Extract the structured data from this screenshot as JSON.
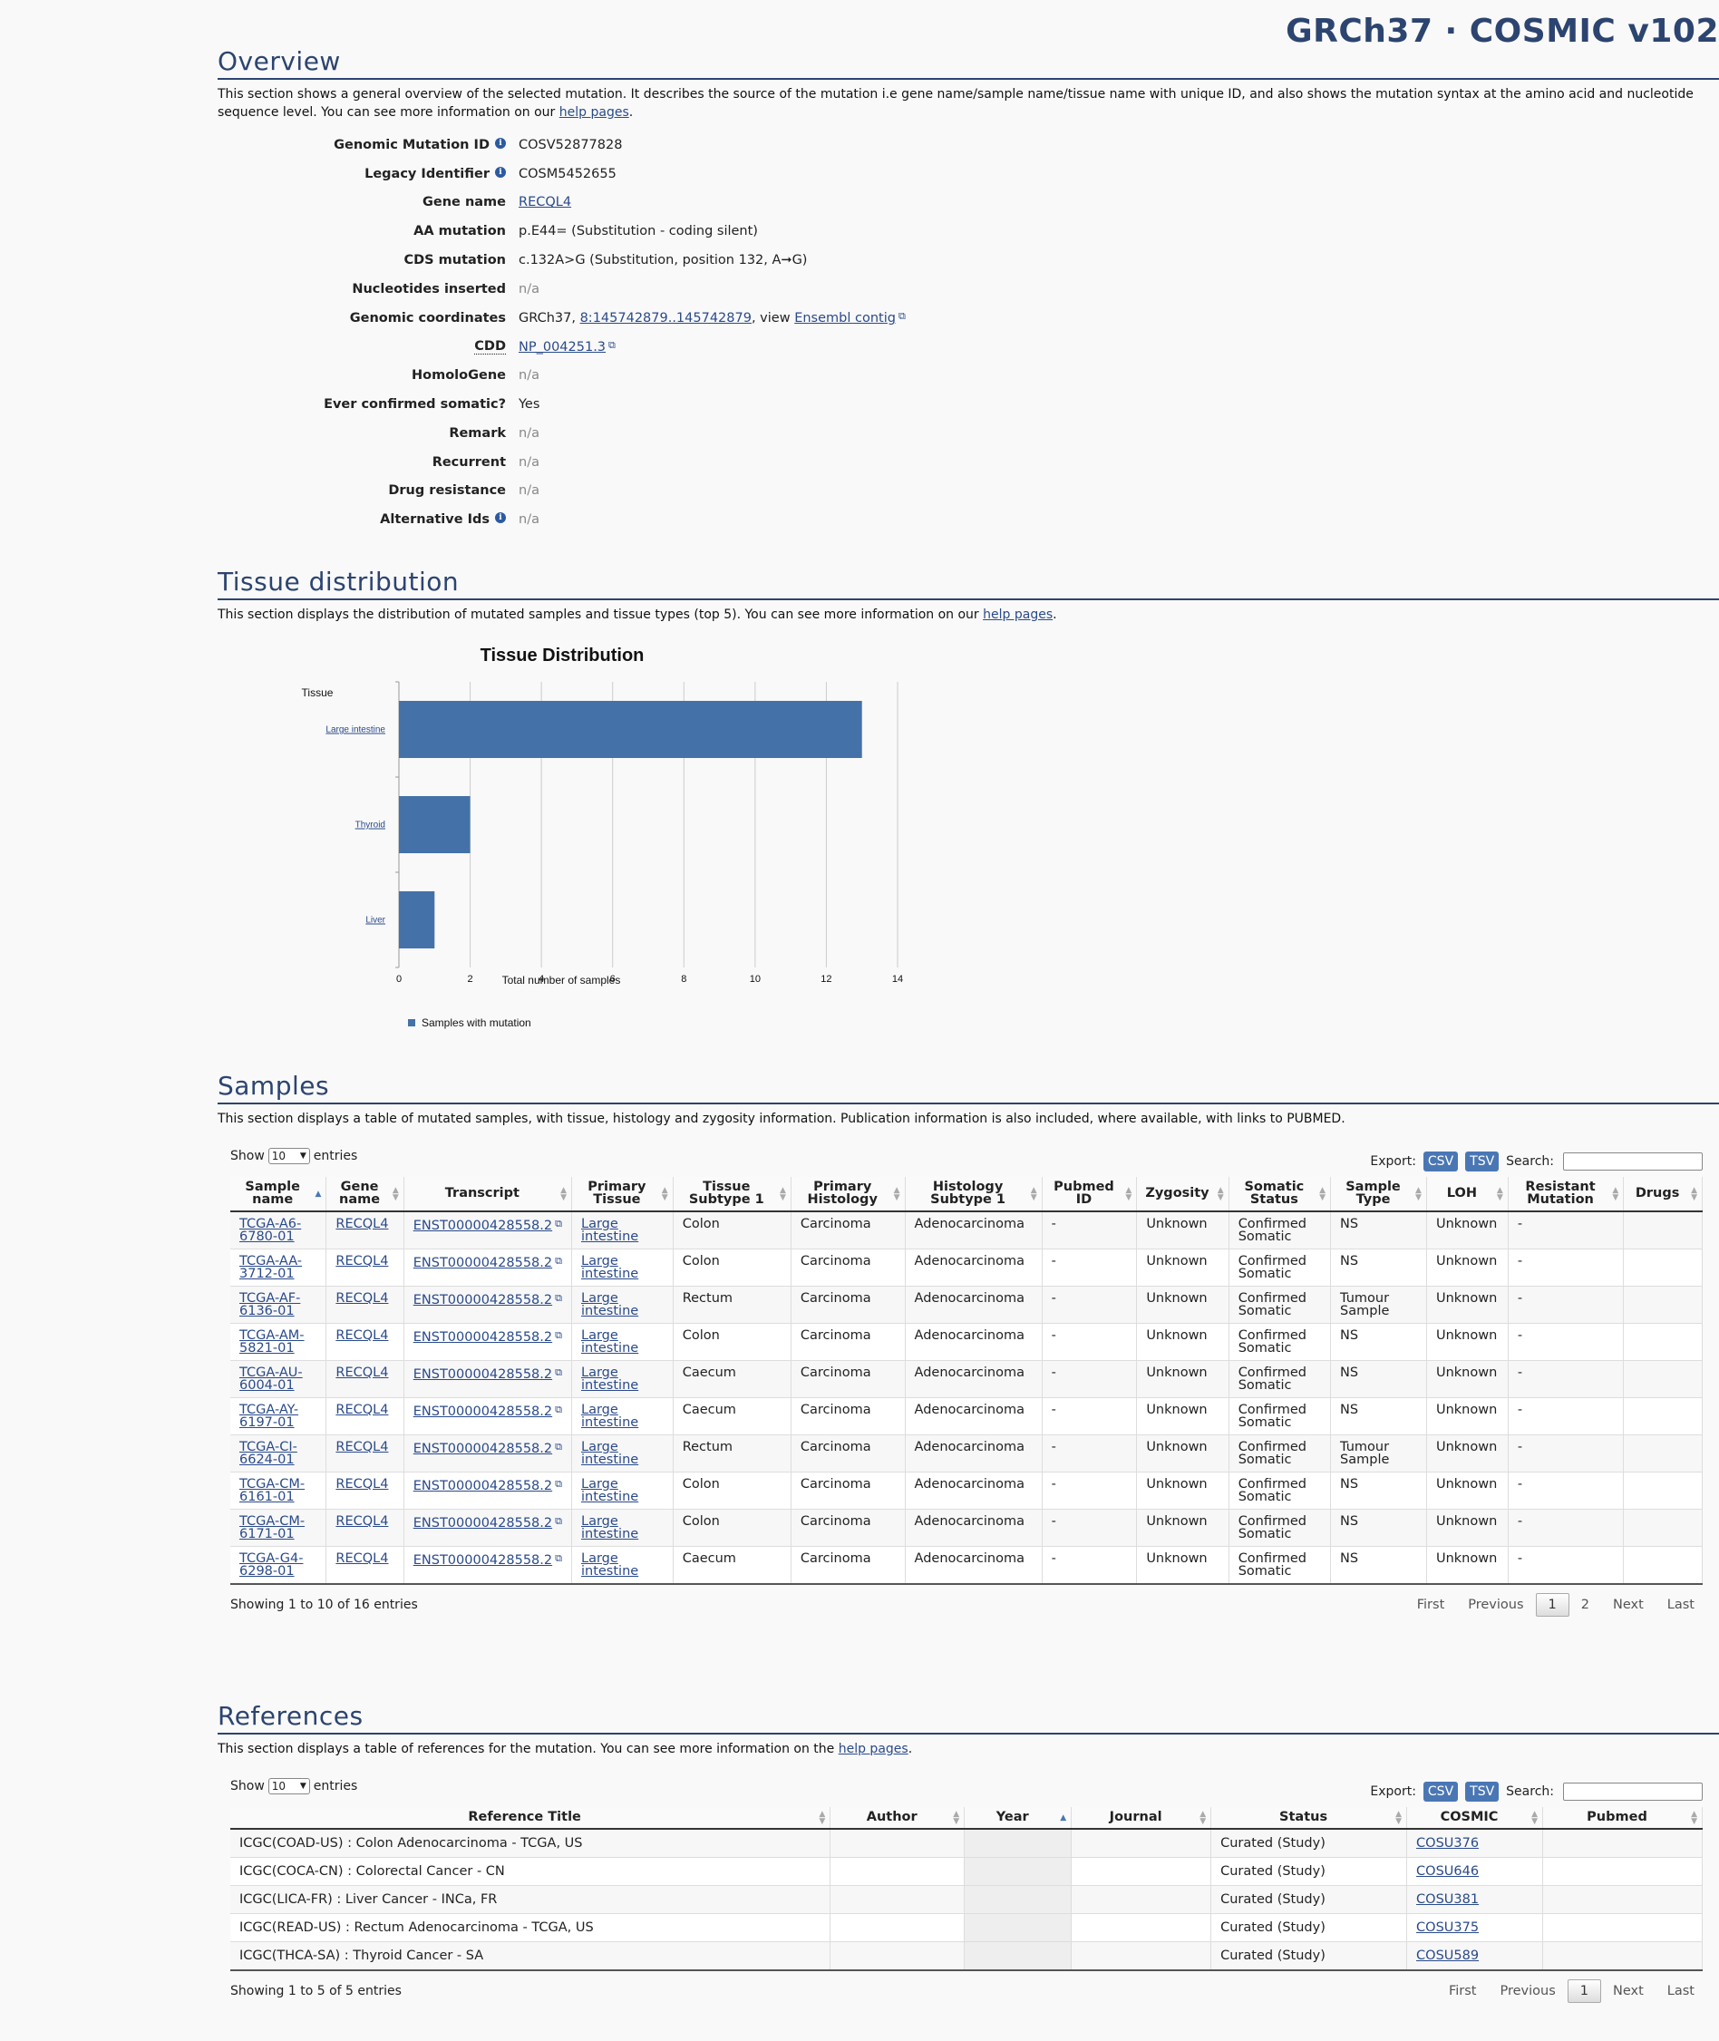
{
  "header": {
    "build_title": "GRCh37 · COSMIC v102"
  },
  "overview": {
    "title": "Overview",
    "desc_text": "This section shows a general overview of the selected mutation. It describes the source of the mutation i.e gene name/sample name/tissue name with unique ID, and also shows the mutation syntax at the amino acid and nucleotide sequence level. You can see more information on our ",
    "desc_link": "help pages",
    "rows": {
      "genomic_id": {
        "term": "Genomic Mutation ID",
        "value": "COSV52877828"
      },
      "legacy_id": {
        "term": "Legacy Identifier",
        "value": "COSM5452655"
      },
      "gene_name": {
        "term": "Gene name",
        "value": "RECQL4"
      },
      "aa_mutation": {
        "term": "AA mutation",
        "value": "p.E44= (Substitution - coding silent)"
      },
      "cds_mutation": {
        "term": "CDS mutation",
        "value": "c.132A>G (Substitution, position 132, A➞G)"
      },
      "nucleotides": {
        "term": "Nucleotides inserted",
        "value": "n/a"
      },
      "coords": {
        "term": "Genomic coordinates",
        "prefix": "GRCh37, ",
        "link": "8:145742879..145742879",
        "mid": ", view ",
        "link2": "Ensembl contig"
      },
      "cdd": {
        "term": "CDD",
        "value": "NP_004251.3"
      },
      "homologene": {
        "term": "HomoloGene",
        "value": "n/a"
      },
      "confirmed": {
        "term": "Ever confirmed somatic?",
        "value": "Yes"
      },
      "remark": {
        "term": "Remark",
        "value": "n/a"
      },
      "recurrent": {
        "term": "Recurrent",
        "value": "n/a"
      },
      "drug": {
        "term": "Drug resistance",
        "value": "n/a"
      },
      "alt_ids": {
        "term": "Alternative Ids",
        "value": "n/a"
      }
    }
  },
  "tissue": {
    "title": "Tissue distribution",
    "desc_text": "This section displays the distribution of mutated samples and tissue types (top 5). You can see more information on our ",
    "desc_link": "help pages"
  },
  "chart_data": {
    "type": "bar",
    "orientation": "horizontal",
    "title": "Tissue Distribution",
    "ylabel": "Tissue",
    "xlabel": "Total number of samples",
    "categories": [
      "Large intestine",
      "Thyroid",
      "Liver"
    ],
    "series": [
      {
        "name": "Samples with mutation",
        "values": [
          13,
          2,
          1
        ],
        "color": "#4472a8"
      }
    ],
    "xlim": [
      0,
      14
    ],
    "xticks": [
      "0",
      "2",
      "4",
      "6",
      "8",
      "10",
      "12",
      "14"
    ],
    "grid": true,
    "legend": "bottom-left"
  },
  "samples": {
    "title": "Samples",
    "desc": "This section displays a table of mutated samples, with tissue, histology and zygosity information. Publication information is also included, where available, with links to PUBMED.",
    "show_label": "Show",
    "page_size": "10",
    "entries_label": "entries",
    "export_label": "Export:",
    "csv": "CSV",
    "tsv": "TSV",
    "search_label": "Search:",
    "columns": [
      "Sample name",
      "Gene name",
      "Transcript",
      "Primary Tissue",
      "Tissue Subtype 1",
      "Primary Histology",
      "Histology Subtype 1",
      "Pubmed ID",
      "Zygosity",
      "Somatic Status",
      "Sample Type",
      "LOH",
      "Resistant Mutation",
      "Drugs"
    ],
    "rows": [
      [
        "TCGA-A6-6780-01",
        "RECQL4",
        "ENST00000428558.2",
        "Large intestine",
        "Colon",
        "Carcinoma",
        "Adenocarcinoma",
        "-",
        "Unknown",
        "Confirmed Somatic",
        "NS",
        "Unknown",
        "-",
        ""
      ],
      [
        "TCGA-AA-3712-01",
        "RECQL4",
        "ENST00000428558.2",
        "Large intestine",
        "Colon",
        "Carcinoma",
        "Adenocarcinoma",
        "-",
        "Unknown",
        "Confirmed Somatic",
        "NS",
        "Unknown",
        "-",
        ""
      ],
      [
        "TCGA-AF-6136-01",
        "RECQL4",
        "ENST00000428558.2",
        "Large intestine",
        "Rectum",
        "Carcinoma",
        "Adenocarcinoma",
        "-",
        "Unknown",
        "Confirmed Somatic",
        "Tumour Sample",
        "Unknown",
        "-",
        ""
      ],
      [
        "TCGA-AM-5821-01",
        "RECQL4",
        "ENST00000428558.2",
        "Large intestine",
        "Colon",
        "Carcinoma",
        "Adenocarcinoma",
        "-",
        "Unknown",
        "Confirmed Somatic",
        "NS",
        "Unknown",
        "-",
        ""
      ],
      [
        "TCGA-AU-6004-01",
        "RECQL4",
        "ENST00000428558.2",
        "Large intestine",
        "Caecum",
        "Carcinoma",
        "Adenocarcinoma",
        "-",
        "Unknown",
        "Confirmed Somatic",
        "NS",
        "Unknown",
        "-",
        ""
      ],
      [
        "TCGA-AY-6197-01",
        "RECQL4",
        "ENST00000428558.2",
        "Large intestine",
        "Caecum",
        "Carcinoma",
        "Adenocarcinoma",
        "-",
        "Unknown",
        "Confirmed Somatic",
        "NS",
        "Unknown",
        "-",
        ""
      ],
      [
        "TCGA-CI-6624-01",
        "RECQL4",
        "ENST00000428558.2",
        "Large intestine",
        "Rectum",
        "Carcinoma",
        "Adenocarcinoma",
        "-",
        "Unknown",
        "Confirmed Somatic",
        "Tumour Sample",
        "Unknown",
        "-",
        ""
      ],
      [
        "TCGA-CM-6161-01",
        "RECQL4",
        "ENST00000428558.2",
        "Large intestine",
        "Colon",
        "Carcinoma",
        "Adenocarcinoma",
        "-",
        "Unknown",
        "Confirmed Somatic",
        "NS",
        "Unknown",
        "-",
        ""
      ],
      [
        "TCGA-CM-6171-01",
        "RECQL4",
        "ENST00000428558.2",
        "Large intestine",
        "Colon",
        "Carcinoma",
        "Adenocarcinoma",
        "-",
        "Unknown",
        "Confirmed Somatic",
        "NS",
        "Unknown",
        "-",
        ""
      ],
      [
        "TCGA-G4-6298-01",
        "RECQL4",
        "ENST00000428558.2",
        "Large intestine",
        "Caecum",
        "Carcinoma",
        "Adenocarcinoma",
        "-",
        "Unknown",
        "Confirmed Somatic",
        "NS",
        "Unknown",
        "-",
        ""
      ]
    ],
    "info": "Showing 1 to 10 of 16 entries",
    "pager": {
      "first": "First",
      "previous": "Previous",
      "pages": [
        "1",
        "2"
      ],
      "current": "1",
      "next": "Next",
      "last": "Last"
    }
  },
  "references": {
    "title": "References",
    "desc_text": "This section displays a table of references for the mutation. You can see more information on the ",
    "desc_link": "help pages",
    "show_label": "Show",
    "page_size": "10",
    "entries_label": "entries",
    "export_label": "Export:",
    "csv": "CSV",
    "tsv": "TSV",
    "search_label": "Search:",
    "columns": [
      "Reference Title",
      "Author",
      "Year",
      "Journal",
      "Status",
      "COSMIC",
      "Pubmed"
    ],
    "rows": [
      [
        "ICGC(COAD-US) : Colon Adenocarcinoma - TCGA, US",
        "",
        "",
        "",
        "Curated (Study)",
        "COSU376",
        ""
      ],
      [
        "ICGC(COCA-CN) : Colorectal Cancer - CN",
        "",
        "",
        "",
        "Curated (Study)",
        "COSU646",
        ""
      ],
      [
        "ICGC(LICA-FR) : Liver Cancer - INCa, FR",
        "",
        "",
        "",
        "Curated (Study)",
        "COSU381",
        ""
      ],
      [
        "ICGC(READ-US) : Rectum Adenocarcinoma - TCGA, US",
        "",
        "",
        "",
        "Curated (Study)",
        "COSU375",
        ""
      ],
      [
        "ICGC(THCA-SA) : Thyroid Cancer - SA",
        "",
        "",
        "",
        "Curated (Study)",
        "COSU589",
        ""
      ]
    ],
    "info": "Showing 1 to 5 of 5 entries",
    "pager": {
      "first": "First",
      "previous": "Previous",
      "pages": [
        "1"
      ],
      "current": "1",
      "next": "Next",
      "last": "Last"
    }
  },
  "colors": {
    "accent": "#2c4470",
    "bar": "#4472a8",
    "link": "#2a4a8a",
    "button": "#4a77b4"
  }
}
